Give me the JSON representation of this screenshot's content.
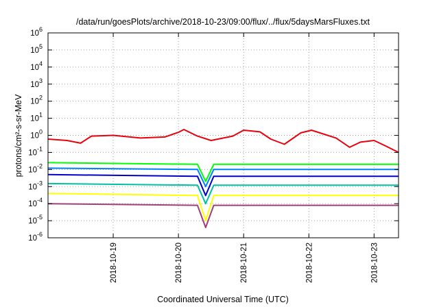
{
  "chart_data": {
    "type": "line",
    "title": "/data/run/goesPlots/archive/2018-10-23/09:00/flux/../flux/5daysMarsFluxes.txt",
    "xlabel": "Coordinated Universal Time (UTC)",
    "ylabel": "protons/cm²-s-sr-MeV",
    "yscale": "log",
    "ylim": [
      1e-06,
      1000000.0
    ],
    "xlim": [
      "2018-10-18 00:00",
      "2018-10-23 09:00"
    ],
    "grid": true,
    "x_ticks": [
      "2018-10-19",
      "2018-10-20",
      "2018-10-21",
      "2018-10-22",
      "2018-10-23"
    ],
    "y_ticks": [
      {
        "base": "10",
        "exp": "-6",
        "value": 1e-06
      },
      {
        "base": "10",
        "exp": "-5",
        "value": 1e-05
      },
      {
        "base": "10",
        "exp": "-4",
        "value": 0.0001
      },
      {
        "base": "10",
        "exp": "-3",
        "value": 0.001
      },
      {
        "base": "10",
        "exp": "-2",
        "value": 0.01
      },
      {
        "base": "10",
        "exp": "-1",
        "value": 0.1
      },
      {
        "base": "10",
        "exp": "0",
        "value": 1
      },
      {
        "base": "10",
        "exp": "1",
        "value": 10
      },
      {
        "base": "10",
        "exp": "2",
        "value": 100
      },
      {
        "base": "10",
        "exp": "3",
        "value": 1000
      },
      {
        "base": "10",
        "exp": "4",
        "value": 10000
      },
      {
        "base": "10",
        "exp": "5",
        "value": 100000
      },
      {
        "base": "10",
        "exp": "6",
        "value": 1000000
      }
    ],
    "series": [
      {
        "color": "#e8000b",
        "x": [
          "2018-10-18 00:00",
          "2018-10-18 07:00",
          "2018-10-18 12:00",
          "2018-10-18 16:00",
          "2018-10-19 00:00",
          "2018-10-19 10:00",
          "2018-10-19 19:00",
          "2018-10-20 00:00",
          "2018-10-20 02:00",
          "2018-10-20 07:00",
          "2018-10-20 12:00",
          "2018-10-20 20:00",
          "2018-10-21 00:00",
          "2018-10-21 06:00",
          "2018-10-21 10:00",
          "2018-10-21 15:00",
          "2018-10-21 21:00",
          "2018-10-22 01:00",
          "2018-10-22 10:00",
          "2018-10-22 15:00",
          "2018-10-22 19:00",
          "2018-10-23 00:00",
          "2018-10-23 04:00",
          "2018-10-23 09:00"
        ],
        "y": [
          0.6,
          0.5,
          0.35,
          0.9,
          1.0,
          0.7,
          0.8,
          1.5,
          2.2,
          0.9,
          0.5,
          0.9,
          2.0,
          1.6,
          0.6,
          0.3,
          1.4,
          2.0,
          0.7,
          0.2,
          0.4,
          0.5,
          0.25,
          0.1
        ]
      },
      {
        "color": "#00ff00",
        "x": [
          "2018-10-18 00:00",
          "2018-10-20 07:00",
          "2018-10-20 10:00",
          "2018-10-20 13:00",
          "2018-10-23 09:00"
        ],
        "y": [
          0.025,
          0.02,
          0.002,
          0.02,
          0.02
        ]
      },
      {
        "color": "#0080ff",
        "x": [
          "2018-10-18 00:00",
          "2018-10-20 07:00",
          "2018-10-20 10:00",
          "2018-10-20 13:00",
          "2018-10-23 09:00"
        ],
        "y": [
          0.012,
          0.01,
          0.001,
          0.01,
          0.01
        ]
      },
      {
        "color": "#0000c8",
        "x": [
          "2018-10-18 00:00",
          "2018-10-20 07:00",
          "2018-10-20 10:00",
          "2018-10-20 13:00",
          "2018-10-23 09:00"
        ],
        "y": [
          0.005,
          0.004,
          0.0003,
          0.004,
          0.004
        ]
      },
      {
        "color": "#00c0a0",
        "x": [
          "2018-10-18 00:00",
          "2018-10-20 07:00",
          "2018-10-20 10:00",
          "2018-10-20 13:00",
          "2018-10-23 09:00"
        ],
        "y": [
          0.0015,
          0.0012,
          0.0001,
          0.0012,
          0.0012
        ]
      },
      {
        "color": "#ffff00",
        "x": [
          "2018-10-18 00:00",
          "2018-10-20 07:00",
          "2018-10-20 10:00",
          "2018-10-20 13:00",
          "2018-10-23 09:00"
        ],
        "y": [
          0.0004,
          0.0003,
          1e-05,
          0.0003,
          0.0003
        ]
      },
      {
        "color": "#a0407a",
        "x": [
          "2018-10-18 00:00",
          "2018-10-20 07:00",
          "2018-10-20 10:00",
          "2018-10-20 13:00",
          "2018-10-23 09:00"
        ],
        "y": [
          0.0001,
          8e-05,
          4e-06,
          8e-05,
          8e-05
        ]
      }
    ]
  }
}
